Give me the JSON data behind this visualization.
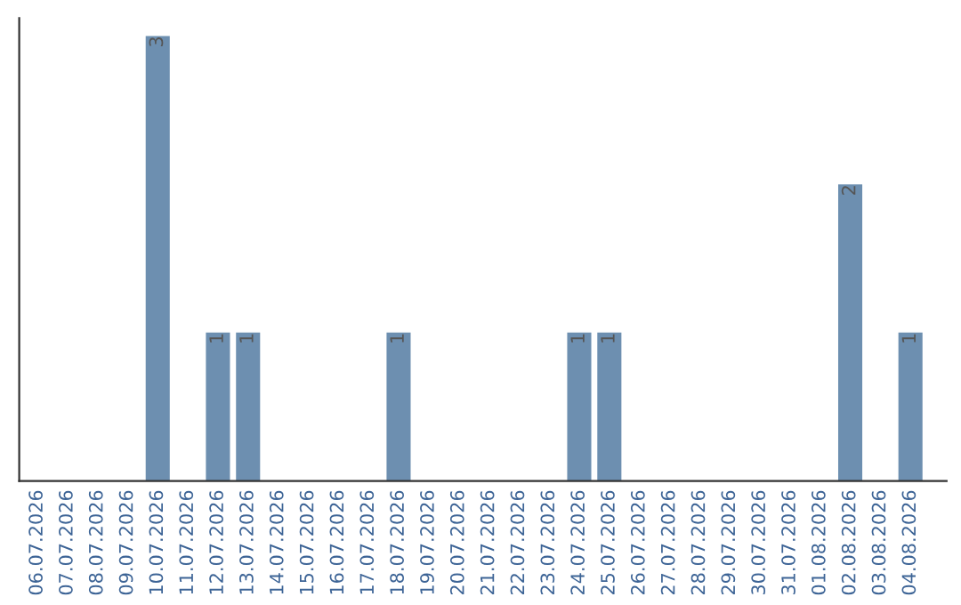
{
  "chart_data": {
    "type": "bar",
    "categories": [
      "06.07.2026",
      "07.07.2026",
      "08.07.2026",
      "09.07.2026",
      "10.07.2026",
      "11.07.2026",
      "12.07.2026",
      "13.07.2026",
      "14.07.2026",
      "15.07.2026",
      "16.07.2026",
      "17.07.2026",
      "18.07.2026",
      "19.07.2026",
      "20.07.2026",
      "21.07.2026",
      "22.07.2026",
      "23.07.2026",
      "24.07.2026",
      "25.07.2026",
      "26.07.2026",
      "27.07.2026",
      "28.07.2026",
      "29.07.2026",
      "30.07.2026",
      "31.07.2026",
      "01.08.2026",
      "02.08.2026",
      "03.08.2026",
      "04.08.2026"
    ],
    "values": [
      0,
      0,
      0,
      0,
      3,
      0,
      1,
      1,
      0,
      0,
      0,
      0,
      1,
      0,
      0,
      0,
      0,
      0,
      1,
      1,
      0,
      0,
      0,
      0,
      0,
      0,
      0,
      2,
      0,
      1
    ],
    "value_labels": [
      null,
      null,
      null,
      null,
      "3",
      null,
      "1",
      "1",
      null,
      null,
      null,
      null,
      "1",
      null,
      null,
      null,
      null,
      null,
      "1",
      "1",
      null,
      null,
      null,
      null,
      null,
      null,
      null,
      "2",
      null,
      "1"
    ],
    "color": "#6d8fb0",
    "tick_labels": "x",
    "grid": false
  }
}
